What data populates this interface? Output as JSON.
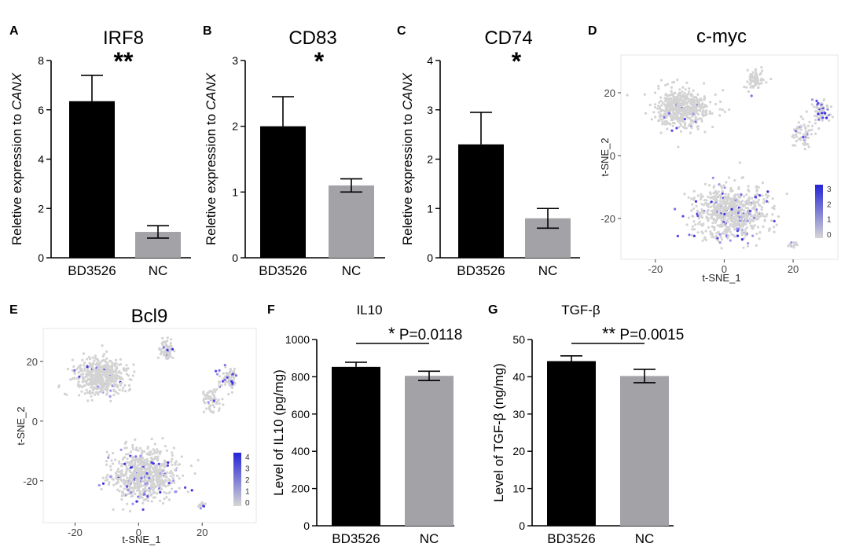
{
  "panel_letters": [
    "A",
    "B",
    "C",
    "D",
    "E",
    "F",
    "G"
  ],
  "chart_data": [
    {
      "panel": "A",
      "type": "bar",
      "title": "IRF8",
      "significance": "**",
      "ylabel_prefix": "Reletive expression to ",
      "ylabel_italic": "CANX",
      "categories": [
        "BD3526",
        "NC"
      ],
      "values": [
        6.35,
        1.05
      ],
      "errors": [
        1.05,
        0.25
      ],
      "ylim": [
        0,
        8
      ],
      "yticks": [
        "0",
        "2",
        "4",
        "6",
        "8"
      ],
      "colors": [
        "#000000",
        "#a3a3a7"
      ]
    },
    {
      "panel": "B",
      "type": "bar",
      "title": "CD83",
      "significance": "*",
      "ylabel_prefix": "Reletive expression to ",
      "ylabel_italic": "CANX",
      "categories": [
        "BD3526",
        "NC"
      ],
      "values": [
        2.0,
        1.1
      ],
      "errors": [
        0.45,
        0.1
      ],
      "ylim": [
        0,
        3
      ],
      "yticks": [
        "0",
        "1",
        "2",
        "3"
      ],
      "colors": [
        "#000000",
        "#a3a3a7"
      ]
    },
    {
      "panel": "C",
      "type": "bar",
      "title": "CD74",
      "significance": "*",
      "ylabel_prefix": "Reletive expression to ",
      "ylabel_italic": "CANX",
      "categories": [
        "BD3526",
        "NC"
      ],
      "values": [
        2.3,
        0.8
      ],
      "errors": [
        0.65,
        0.2
      ],
      "ylim": [
        0,
        4
      ],
      "yticks": [
        "0",
        "1",
        "2",
        "3",
        "4"
      ],
      "colors": [
        "#000000",
        "#a3a3a7"
      ]
    },
    {
      "panel": "D",
      "type": "scatter",
      "title": "c-myc",
      "xlabel": "t-SNE_1",
      "ylabel": "t-SNE_2",
      "xticks": [
        "-20",
        "0",
        "20"
      ],
      "yticks": [
        "20",
        "0",
        "-20"
      ],
      "xlim": [
        -30,
        33
      ],
      "ylim": [
        -33,
        32
      ],
      "legend_ticks": [
        "3",
        "2",
        "1",
        "0"
      ],
      "legend_colors": [
        "#2424d6",
        "#d6d6d6"
      ]
    },
    {
      "panel": "E",
      "type": "scatter",
      "title": "Bcl9",
      "xlabel": "t-SNE_1",
      "ylabel": "t-SNE_2",
      "xticks": [
        "-20",
        "0",
        "20"
      ],
      "yticks": [
        "20",
        "0",
        "-20"
      ],
      "xlim": [
        -30,
        37
      ],
      "ylim": [
        -34,
        31
      ],
      "legend_ticks": [
        "4",
        "3",
        "2",
        "1",
        "0"
      ],
      "legend_colors": [
        "#2424d6",
        "#d6d6d6"
      ]
    },
    {
      "panel": "F",
      "type": "bar",
      "title": "IL10",
      "ylabel": "Level of IL10 (pg/mg)",
      "significance": "*",
      "pvalue": "P=0.0118",
      "categories": [
        "BD3526",
        "NC"
      ],
      "values": [
        853,
        805
      ],
      "errors": [
        25,
        25
      ],
      "ylim": [
        0,
        1000
      ],
      "yticks": [
        "0",
        "200",
        "400",
        "600",
        "800",
        "1000"
      ],
      "colors": [
        "#000000",
        "#a3a3a7"
      ]
    },
    {
      "panel": "G",
      "type": "bar",
      "title": "TGF-β",
      "ylabel": "Level of TGF-β (ng/mg)",
      "significance": "**",
      "pvalue": "P=0.0015",
      "categories": [
        "BD3526",
        "NC"
      ],
      "values": [
        44.2,
        40.2
      ],
      "errors": [
        1.4,
        1.8
      ],
      "ylim": [
        0,
        50
      ],
      "yticks": [
        "0",
        "10",
        "20",
        "30",
        "40",
        "50"
      ],
      "colors": [
        "#000000",
        "#a3a3a7"
      ]
    }
  ]
}
